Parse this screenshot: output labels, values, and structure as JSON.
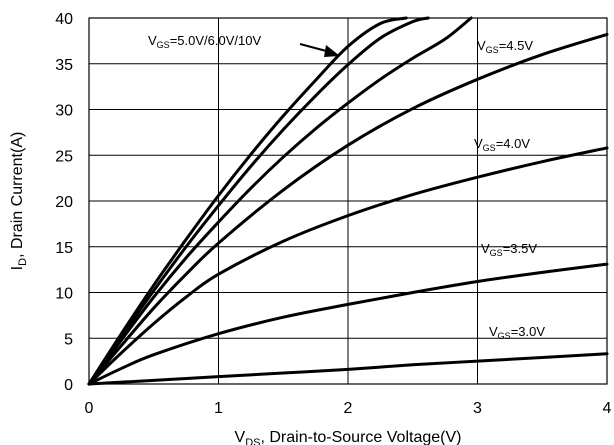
{
  "chart_data": {
    "type": "line",
    "xlabel_main": "V",
    "xlabel_sub": "DS",
    "xlabel_rest": ", Drain-to-Source Voltage(V)",
    "ylabel_main": "I",
    "ylabel_sub": "D",
    "ylabel_rest": ", Drain Current(A)",
    "xlim": [
      0,
      4
    ],
    "ylim": [
      0,
      40
    ],
    "x_ticks": [
      0,
      1,
      2,
      3,
      4
    ],
    "y_ticks": [
      0,
      5,
      10,
      15,
      20,
      25,
      30,
      35,
      40
    ],
    "grid": true,
    "series": [
      {
        "name": "VGS=10V",
        "x": [
          0,
          0.25,
          0.5,
          0.75,
          1.0,
          1.25,
          1.5,
          1.75,
          2.0,
          2.25,
          2.45
        ],
        "y": [
          0,
          5.5,
          10.8,
          15.8,
          20.6,
          25.1,
          29.3,
          33.2,
          36.9,
          39.4,
          40
        ]
      },
      {
        "name": "VGS=6.0V",
        "x": [
          0,
          0.25,
          0.5,
          0.75,
          1.0,
          1.25,
          1.5,
          1.75,
          2.0,
          2.25,
          2.5,
          2.62
        ],
        "y": [
          0,
          5.2,
          10.2,
          15.0,
          19.5,
          23.8,
          27.8,
          31.5,
          34.9,
          37.8,
          39.6,
          40
        ]
      },
      {
        "name": "VGS=5.0V",
        "x": [
          0,
          0.25,
          0.5,
          0.75,
          1.0,
          1.25,
          1.5,
          1.75,
          2.0,
          2.25,
          2.5,
          2.75,
          2.95
        ],
        "y": [
          0,
          4.8,
          9.5,
          13.8,
          17.7,
          21.4,
          24.8,
          27.9,
          30.7,
          33.3,
          35.6,
          37.7,
          40
        ]
      },
      {
        "name": "VGS=4.5V",
        "x": [
          0,
          0.25,
          0.5,
          0.75,
          1.0,
          1.5,
          2.0,
          2.5,
          3.0,
          3.5,
          4.0
        ],
        "y": [
          0,
          4.2,
          8.3,
          12.0,
          15.4,
          21.2,
          26.1,
          30.1,
          33.3,
          36.0,
          38.2
        ]
      },
      {
        "name": "VGS=4.0V",
        "x": [
          0,
          0.25,
          0.5,
          0.75,
          1.0,
          1.5,
          2.0,
          2.5,
          3.0,
          3.5,
          4.0
        ],
        "y": [
          0,
          3.4,
          6.6,
          9.5,
          12.0,
          15.6,
          18.4,
          20.7,
          22.6,
          24.3,
          25.8
        ]
      },
      {
        "name": "VGS=3.5V",
        "x": [
          0,
          0.25,
          0.5,
          1.0,
          1.5,
          2.0,
          2.5,
          3.0,
          3.5,
          4.0
        ],
        "y": [
          0,
          1.7,
          3.2,
          5.5,
          7.3,
          8.7,
          10.0,
          11.2,
          12.2,
          13.1
        ]
      },
      {
        "name": "VGS=3.0V",
        "x": [
          0,
          0.5,
          1.0,
          1.5,
          2.0,
          2.5,
          3.0,
          3.5,
          4.0
        ],
        "y": [
          0,
          0.4,
          0.8,
          1.2,
          1.6,
          2.1,
          2.5,
          2.9,
          3.3
        ]
      }
    ],
    "annotations": [
      {
        "main": "V",
        "sub": "GS",
        "rest": "=5.0V/6.0V/10V",
        "points_to": "VGS=5.0V/6.0V/10V",
        "arrow": true
      },
      {
        "main": "V",
        "sub": "GS",
        "rest": "=4.5V",
        "points_to": "VGS=4.5V"
      },
      {
        "main": "V",
        "sub": "GS",
        "rest": "=4.0V",
        "points_to": "VGS=4.0V"
      },
      {
        "main": "V",
        "sub": "GS",
        "rest": "=3.5V",
        "points_to": "VGS=3.5V"
      },
      {
        "main": "V",
        "sub": "GS",
        "rest": "=3.0V",
        "points_to": "VGS=3.0V"
      }
    ]
  }
}
